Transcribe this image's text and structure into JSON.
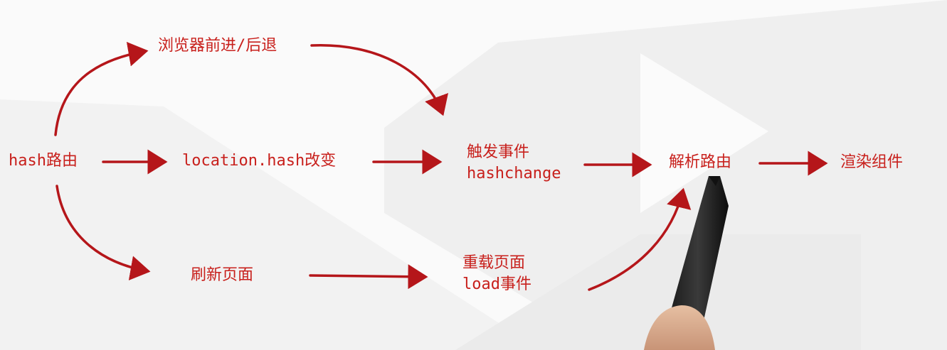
{
  "diagram": {
    "nodes": {
      "hash_route": "hash路由",
      "browser_nav": "浏览器前进/后退",
      "location_hash": "location.hash改变",
      "trigger_event": [
        "触发事件",
        "hashchange"
      ],
      "parse_route": "解析路由",
      "render_component": "渲染组件",
      "refresh_page": "刷新页面",
      "reload_page": [
        "重载页面",
        "load事件"
      ]
    },
    "edges": [
      [
        "hash_route",
        "browser_nav"
      ],
      [
        "hash_route",
        "location_hash"
      ],
      [
        "hash_route",
        "refresh_page"
      ],
      [
        "browser_nav",
        "trigger_event"
      ],
      [
        "location_hash",
        "trigger_event"
      ],
      [
        "trigger_event",
        "parse_route"
      ],
      [
        "parse_route",
        "render_component"
      ],
      [
        "refresh_page",
        "reload_page"
      ],
      [
        "reload_page",
        "parse_route"
      ]
    ]
  },
  "colors": {
    "text": "#c8201c",
    "arrow": "#b5161a",
    "background": "#fafafa",
    "watermark": "#e6e6e6"
  }
}
